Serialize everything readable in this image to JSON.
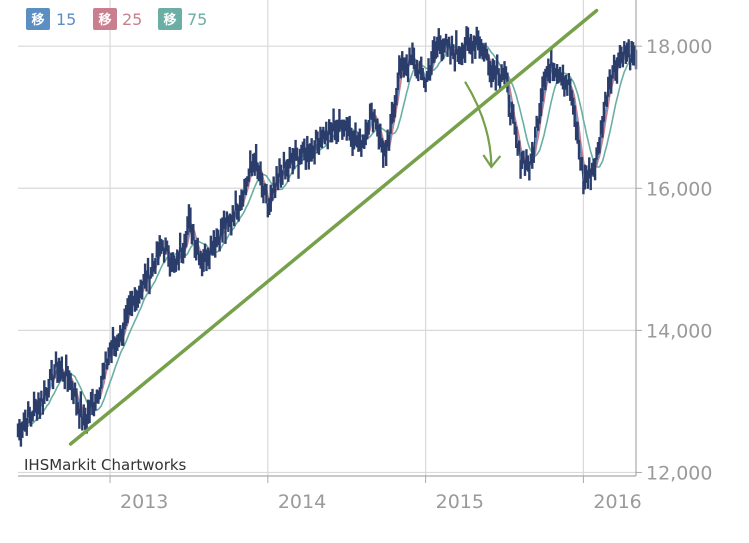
{
  "chart_data": {
    "type": "line",
    "title": "",
    "xlabel": "",
    "ylabel": "",
    "x_ticks": [
      "2013",
      "2014",
      "2015",
      "2016"
    ],
    "y_ticks": [
      "12,000",
      "14,000",
      "16,000",
      "18,000"
    ],
    "y_tick_values": [
      12000,
      14000,
      16000,
      18000
    ],
    "ylim": [
      11950,
      18650
    ],
    "xlim": [
      "2012-06",
      "2016-05"
    ],
    "x_tick_positions": [
      "2013-01",
      "2014-01",
      "2015-01",
      "2016-01"
    ],
    "grid": true,
    "y_axis_side": "right",
    "legend_placement": "top-left",
    "source": "IHSMarkit Chartworks",
    "price_color": "#2b3d6b",
    "price_points": [
      [
        "2012-06",
        12600
      ],
      [
        "2012-07",
        12800
      ],
      [
        "2012-08",
        13100
      ],
      [
        "2012-09",
        13500
      ],
      [
        "2012-10",
        13300
      ],
      [
        "2012-11",
        12700
      ],
      [
        "2012-12",
        13100
      ],
      [
        "2013-01",
        13700
      ],
      [
        "2013-02",
        14000
      ],
      [
        "2013-03",
        14500
      ],
      [
        "2013-04",
        14800
      ],
      [
        "2013-05",
        15200
      ],
      [
        "2013-06",
        14900
      ],
      [
        "2013-07",
        15500
      ],
      [
        "2013-08",
        15000
      ],
      [
        "2013-09",
        15300
      ],
      [
        "2013-10",
        15500
      ],
      [
        "2013-11",
        15900
      ],
      [
        "2013-12",
        16400
      ],
      [
        "2014-01",
        15700
      ],
      [
        "2014-02",
        16200
      ],
      [
        "2014-03",
        16400
      ],
      [
        "2014-04",
        16500
      ],
      [
        "2014-05",
        16700
      ],
      [
        "2014-06",
        16850
      ],
      [
        "2014-07",
        16900
      ],
      [
        "2014-08",
        16600
      ],
      [
        "2014-09",
        17100
      ],
      [
        "2014-10",
        16400
      ],
      [
        "2014-11",
        17700
      ],
      [
        "2014-12",
        17800
      ],
      [
        "2015-01",
        17500
      ],
      [
        "2015-02",
        18100
      ],
      [
        "2015-03",
        17900
      ],
      [
        "2015-04",
        18000
      ],
      [
        "2015-05",
        18100
      ],
      [
        "2015-06",
        17700
      ],
      [
        "2015-07",
        17600
      ],
      [
        "2015-08",
        16500
      ],
      [
        "2015-09",
        16300
      ],
      [
        "2015-10",
        17600
      ],
      [
        "2015-11",
        17750
      ],
      [
        "2015-12",
        17400
      ],
      [
        "2016-01",
        16100
      ],
      [
        "2016-02",
        16400
      ],
      [
        "2016-03",
        17600
      ],
      [
        "2016-04",
        17900
      ],
      [
        "2016-05",
        17800
      ]
    ],
    "series": [
      {
        "name": "15",
        "color": "#5b8ec1",
        "badge": "移",
        "values_desc": "15-period moving average"
      },
      {
        "name": "25",
        "color": "#c97f8e",
        "badge": "移",
        "values_desc": "25-period moving average"
      },
      {
        "name": "75",
        "color": "#6aaea4",
        "badge": "移",
        "values_desc": "75-period moving average"
      }
    ],
    "trendline": {
      "color": "#76a04a",
      "from": [
        "2012-10",
        12400
      ],
      "to": [
        "2016-02",
        18500
      ]
    },
    "arrow": {
      "color": "#76a04a",
      "from": [
        "2015-04",
        17500
      ],
      "to": [
        "2015-06",
        16300
      ]
    }
  }
}
